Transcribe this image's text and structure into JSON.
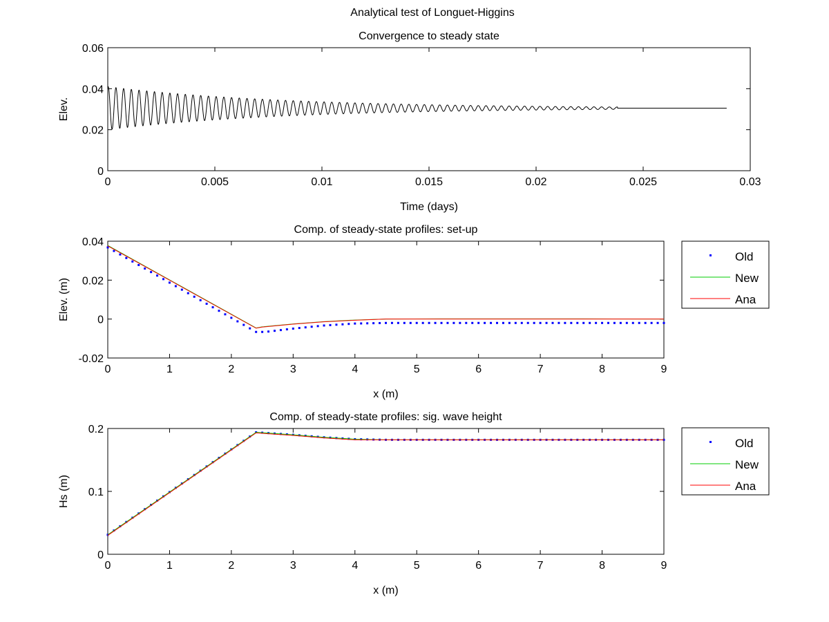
{
  "figure": {
    "title_line1": "Analytical test of Longuet-Higgins",
    "title_line2": "Convergence to steady state"
  },
  "chart_data": [
    {
      "id": "elev_time",
      "type": "line",
      "title": "Convergence to steady state",
      "xlabel": "Time (days)",
      "ylabel": "Elev.",
      "xlim": [
        0,
        0.03
      ],
      "ylim": [
        0,
        0.06
      ],
      "xticks": [
        0,
        0.005,
        0.01,
        0.015,
        0.02,
        0.025,
        0.03
      ],
      "xtick_labels": [
        "0",
        "0.005",
        "0.01",
        "0.015",
        "0.02",
        "0.025",
        "0.03"
      ],
      "yticks": [
        0,
        0.02,
        0.04,
        0.06
      ],
      "ytick_labels": [
        "0",
        "0.02",
        "0.04",
        "0.06"
      ],
      "series": [
        {
          "name": "Elev.",
          "color": "#000000",
          "model": "damped_oscillation",
          "steady_value": 0.0305,
          "initial_amplitude": 0.0105,
          "decay_time": 0.0082,
          "period": 0.00036,
          "oscillation_end": 0.0238,
          "x_end": 0.0289
        }
      ]
    },
    {
      "id": "setup",
      "type": "line",
      "title": "Comp. of steady-state profiles: set-up",
      "xlabel": "x (m)",
      "ylabel": "Elev. (m)",
      "xlim": [
        0,
        9
      ],
      "ylim": [
        -0.02,
        0.04
      ],
      "xticks": [
        0,
        1,
        2,
        3,
        4,
        5,
        6,
        7,
        8,
        9
      ],
      "xtick_labels": [
        "0",
        "1",
        "2",
        "3",
        "4",
        "5",
        "6",
        "7",
        "8",
        "9"
      ],
      "yticks": [
        -0.02,
        0,
        0.02,
        0.04
      ],
      "ytick_labels": [
        "-0.02",
        "0",
        "0.02",
        "0.04"
      ],
      "legend": [
        "Old",
        "New",
        "Ana"
      ],
      "series": [
        {
          "name": "Old",
          "style": "dots",
          "color": "#0000ff",
          "x": [
            0,
            2.4,
            2.55,
            3.0,
            3.5,
            4.0,
            4.5,
            9.0
          ],
          "y": [
            0.0368,
            -0.0066,
            -0.0066,
            -0.0049,
            -0.0033,
            -0.0023,
            -0.002,
            -0.002
          ],
          "step": 0.1
        },
        {
          "name": "New",
          "style": "line",
          "color": "#00cc00",
          "x": [
            0,
            2.4,
            2.5,
            3.0,
            3.5,
            4.0,
            4.5,
            5.5,
            7.7,
            9.0
          ],
          "y": [
            0.0378,
            -0.0046,
            -0.004,
            -0.0025,
            -0.0013,
            -0.0005,
            0.0,
            0.0001,
            0.0001,
            0.0
          ]
        },
        {
          "name": "Ana",
          "style": "line",
          "color": "#ff0000",
          "x": [
            0,
            2.4,
            2.5,
            3.0,
            3.5,
            4.0,
            4.5,
            9.0
          ],
          "y": [
            0.0376,
            -0.0047,
            -0.0041,
            -0.0026,
            -0.0014,
            -0.0006,
            0.0,
            0.0
          ]
        }
      ]
    },
    {
      "id": "hs",
      "type": "line",
      "title": "Comp. of steady-state profiles: sig. wave height",
      "xlabel": "x (m)",
      "ylabel": "Hs (m)",
      "xlim": [
        0,
        9
      ],
      "ylim": [
        0,
        0.2
      ],
      "xticks": [
        0,
        1,
        2,
        3,
        4,
        5,
        6,
        7,
        8,
        9
      ],
      "xtick_labels": [
        "0",
        "1",
        "2",
        "3",
        "4",
        "5",
        "6",
        "7",
        "8",
        "9"
      ],
      "yticks": [
        0,
        0.1,
        0.2
      ],
      "ytick_labels": [
        "0",
        "0.1",
        "0.2"
      ],
      "legend": [
        "Old",
        "New",
        "Ana"
      ],
      "series": [
        {
          "name": "Old",
          "style": "dots",
          "color": "#0000ff",
          "x": [
            0,
            2.4,
            3.0,
            3.5,
            4.0,
            4.5,
            9.0
          ],
          "y": [
            0.031,
            0.194,
            0.19,
            0.186,
            0.183,
            0.182,
            0.182
          ],
          "step": 0.1
        },
        {
          "name": "New",
          "style": "line",
          "color": "#00cc00",
          "x": [
            0,
            2.4,
            3.0,
            3.5,
            4.0,
            4.5,
            9.0
          ],
          "y": [
            0.031,
            0.194,
            0.19,
            0.186,
            0.183,
            0.182,
            0.182
          ]
        },
        {
          "name": "Ana",
          "style": "line",
          "color": "#ff0000",
          "x": [
            0,
            2.4,
            3.0,
            3.5,
            4.0,
            4.5,
            9.0
          ],
          "y": [
            0.03,
            0.193,
            0.189,
            0.185,
            0.182,
            0.182,
            0.182
          ]
        }
      ]
    }
  ]
}
